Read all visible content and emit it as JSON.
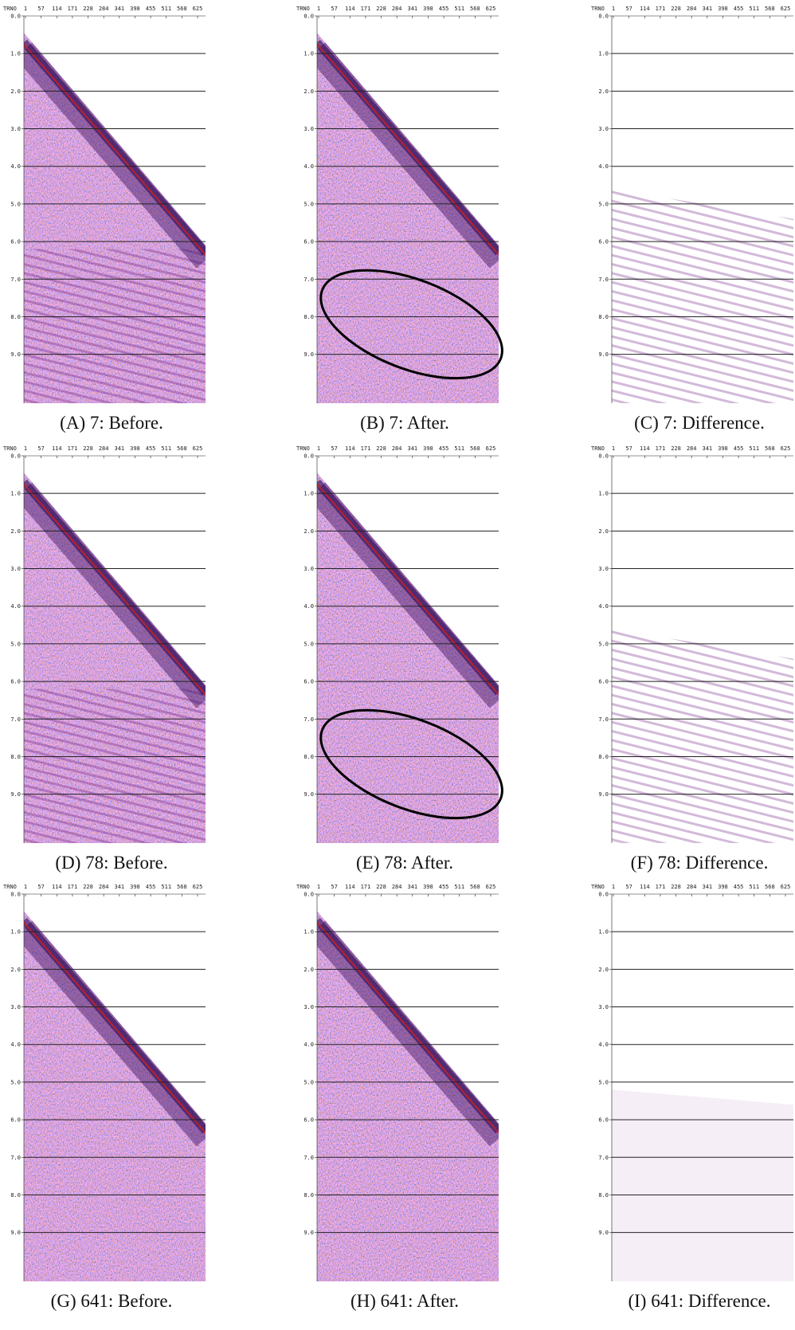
{
  "panels": [
    {
      "caption": "(A) 7: Before."
    },
    {
      "caption": "(B) 7: After."
    },
    {
      "caption": "(C) 7: Difference."
    },
    {
      "caption": "(D) 78: Before."
    },
    {
      "caption": "(E) 78: After."
    },
    {
      "caption": "(F) 78: Difference."
    },
    {
      "caption": "(G) 641: Before."
    },
    {
      "caption": "(H) 641: After."
    },
    {
      "caption": "(I) 641: Difference."
    }
  ],
  "axis": {
    "trace_label": "TRNO",
    "trace_ticks": [
      "1",
      "57",
      "114",
      "171",
      "228",
      "284",
      "341",
      "398",
      "455",
      "511",
      "568",
      "625"
    ],
    "time_ticks": [
      "0.0",
      "1.0",
      "2.0",
      "3.0",
      "4.0",
      "5.0",
      "6.0",
      "7.0",
      "8.0",
      "9.0"
    ]
  }
}
